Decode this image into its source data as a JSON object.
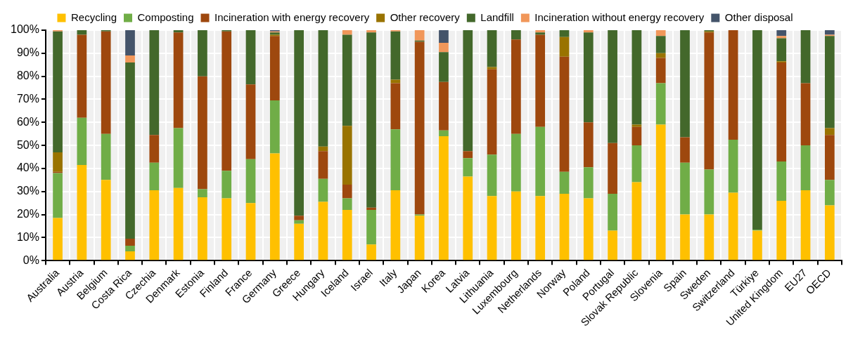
{
  "chart_data": {
    "type": "bar",
    "stacked": true,
    "categories": [
      "Australia",
      "Austria",
      "Belgium",
      "Costa Rica",
      "Czechia",
      "Denmark",
      "Estonia",
      "Finland",
      "France",
      "Germany",
      "Greece",
      "Hungary",
      "Iceland",
      "Israel",
      "Italy",
      "Japan",
      "Korea",
      "Latvia",
      "Lithuania",
      "Luxembourg",
      "Netherlands",
      "Norway",
      "Poland",
      "Portugal",
      "Slovak Republic",
      "Slovenia",
      "Spain",
      "Sweden",
      "Switzerland",
      "Türkiye",
      "United Kingdom",
      "EU27",
      "OECD"
    ],
    "series": [
      {
        "name": "Recycling",
        "color": "#ffc000",
        "values": [
          18.5,
          41.5,
          35,
          4,
          30.5,
          31.5,
          27.5,
          27,
          25,
          46.5,
          16,
          25.5,
          22,
          7,
          30.5,
          19.5,
          54,
          36.5,
          28,
          30,
          28,
          29,
          27,
          13,
          34,
          59,
          20,
          20,
          29.5,
          13,
          26,
          30.5,
          24
        ]
      },
      {
        "name": "Composting",
        "color": "#70ad47",
        "values": [
          19.5,
          20.5,
          20,
          2.5,
          12,
          26,
          3.5,
          12,
          19,
          23,
          1.5,
          10,
          5,
          15,
          26.5,
          0.5,
          2.5,
          8,
          18,
          25,
          30,
          9.5,
          13.5,
          16,
          16,
          18,
          22.5,
          19.5,
          23,
          0.5,
          17,
          19.5,
          11
        ]
      },
      {
        "name": "Incineration with energy recovery",
        "color": "#9e480e",
        "values": [
          0.5,
          36,
          44.5,
          3,
          12,
          41.5,
          49,
          60.5,
          32.5,
          28,
          2,
          12,
          6,
          1,
          20,
          75,
          21,
          3,
          37,
          41,
          40,
          50,
          19.5,
          22,
          8,
          11,
          11,
          59.5,
          47.5,
          0,
          43,
          27,
          19.5
        ]
      },
      {
        "name": "Other recovery",
        "color": "#997300",
        "values": [
          8.5,
          0,
          0,
          0,
          0,
          0,
          0,
          0,
          0,
          0.5,
          0,
          2,
          25.5,
          0,
          1.5,
          0,
          0,
          0,
          1,
          0,
          0,
          8.5,
          0,
          0,
          1,
          2,
          0,
          0.5,
          0,
          0,
          0.5,
          0,
          3
        ]
      },
      {
        "name": "Landfill",
        "color": "#43682b",
        "values": [
          52.5,
          2,
          0.5,
          76.5,
          45.5,
          1,
          20,
          0.5,
          23.5,
          1,
          80.5,
          50.5,
          39.5,
          76,
          21,
          0.5,
          13,
          52.5,
          16,
          4,
          1,
          3,
          39,
          49,
          41,
          7.5,
          46.5,
          0.5,
          0,
          86.5,
          10,
          23,
          40
        ]
      },
      {
        "name": "Incineration without energy recovery",
        "color": "#f1975a",
        "values": [
          0.5,
          0,
          0,
          3,
          0,
          0,
          0,
          0,
          0,
          0.5,
          0,
          0,
          2,
          1,
          0.5,
          4.5,
          4,
          0,
          0,
          0,
          1,
          0,
          1,
          0,
          0,
          2.5,
          0,
          0,
          0,
          0,
          1,
          0,
          0.5
        ]
      },
      {
        "name": "Other disposal",
        "color": "#44546a",
        "values": [
          0,
          0,
          0,
          11,
          0,
          0,
          0,
          0,
          0,
          0.5,
          0,
          0,
          0,
          0,
          0,
          0,
          5.5,
          0,
          0,
          0,
          0,
          0,
          0,
          0,
          0,
          0,
          0,
          0,
          0,
          0,
          2.5,
          0,
          2
        ]
      }
    ],
    "ylim": [
      0,
      100
    ],
    "yticks": [
      {
        "value": 0,
        "label": "0%"
      },
      {
        "value": 10,
        "label": "10%"
      },
      {
        "value": 20,
        "label": "20%"
      },
      {
        "value": 30,
        "label": "30%"
      },
      {
        "value": 40,
        "label": "40%"
      },
      {
        "value": 50,
        "label": "50%"
      },
      {
        "value": 60,
        "label": "60%"
      },
      {
        "value": 70,
        "label": "70%"
      },
      {
        "value": 80,
        "label": "80%"
      },
      {
        "value": 90,
        "label": "90%"
      },
      {
        "value": 100,
        "label": "100%"
      }
    ],
    "grid": true,
    "legend": "top"
  }
}
